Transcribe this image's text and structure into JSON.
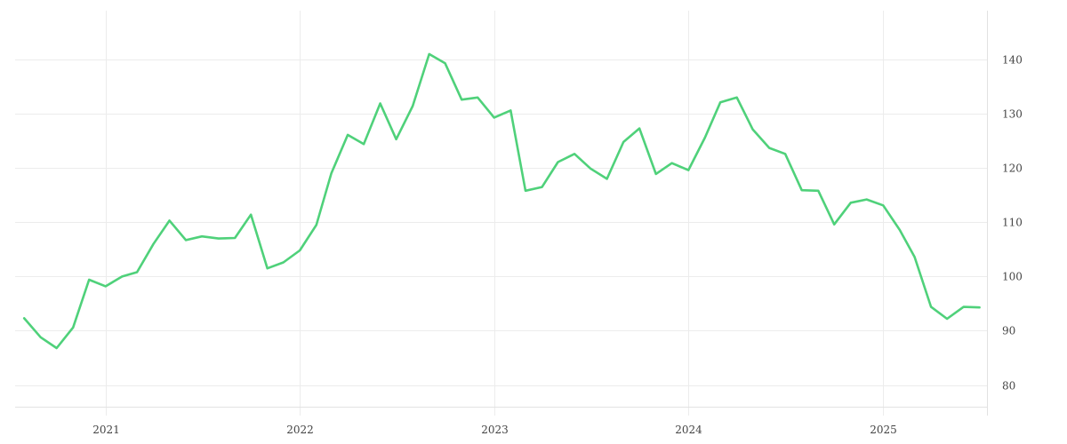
{
  "chart_data": {
    "type": "line",
    "title": "",
    "xlabel": "",
    "ylabel": "",
    "grid": true,
    "y_axis_side": "right",
    "colors": {
      "line": "#4fd17a",
      "grid": "#ececec",
      "text": "#444444"
    },
    "xlim": [
      "2020-07-15",
      "2025-07-15"
    ],
    "ylim": [
      76,
      149
    ],
    "x_ticks": [
      {
        "value": "2021-01-01",
        "label": "2021"
      },
      {
        "value": "2022-01-01",
        "label": "2022"
      },
      {
        "value": "2023-01-01",
        "label": "2023"
      },
      {
        "value": "2024-01-01",
        "label": "2024"
      },
      {
        "value": "2025-01-01",
        "label": "2025"
      }
    ],
    "y_ticks": [
      80,
      90,
      100,
      110,
      120,
      130,
      140
    ],
    "series": [
      {
        "x": [
          "2020-08",
          "2020-09",
          "2020-10",
          "2020-11",
          "2020-12",
          "2021-01",
          "2021-02",
          "2021-03",
          "2021-04",
          "2021-05",
          "2021-06",
          "2021-07",
          "2021-08",
          "2021-09",
          "2021-10",
          "2021-11",
          "2021-12",
          "2022-01",
          "2022-02",
          "2022-03",
          "2022-04",
          "2022-05",
          "2022-06",
          "2022-07",
          "2022-08",
          "2022-09",
          "2022-10",
          "2022-11",
          "2022-12",
          "2023-01",
          "2023-02",
          "2023-03",
          "2023-04",
          "2023-05",
          "2023-06",
          "2023-07",
          "2023-08",
          "2023-09",
          "2023-10",
          "2023-11",
          "2023-12",
          "2024-01",
          "2024-02",
          "2024-03",
          "2024-04",
          "2024-05",
          "2024-06",
          "2024-07",
          "2024-08",
          "2024-09",
          "2024-10",
          "2024-11",
          "2024-12",
          "2025-01",
          "2025-02",
          "2025-03",
          "2025-04",
          "2025-05",
          "2025-06",
          "2025-07"
        ],
        "values": [
          92.3,
          88.8,
          86.8,
          90.6,
          99.4,
          98.2,
          100.0,
          100.8,
          106.0,
          110.3,
          106.7,
          107.4,
          107.0,
          107.1,
          111.4,
          101.5,
          102.6,
          104.8,
          109.5,
          119.0,
          126.1,
          124.4,
          131.9,
          125.3,
          131.4,
          141.0,
          139.3,
          132.6,
          133.0,
          129.3,
          130.6,
          115.8,
          116.5,
          121.1,
          122.6,
          119.9,
          118.0,
          124.8,
          127.3,
          118.9,
          120.9,
          119.6,
          125.6,
          132.1,
          133.0,
          127.1,
          123.7,
          122.6,
          115.9,
          115.8,
          109.6,
          113.6,
          114.2,
          113.1,
          108.6,
          103.6,
          94.4,
          92.2,
          94.4,
          94.3
        ]
      }
    ]
  }
}
